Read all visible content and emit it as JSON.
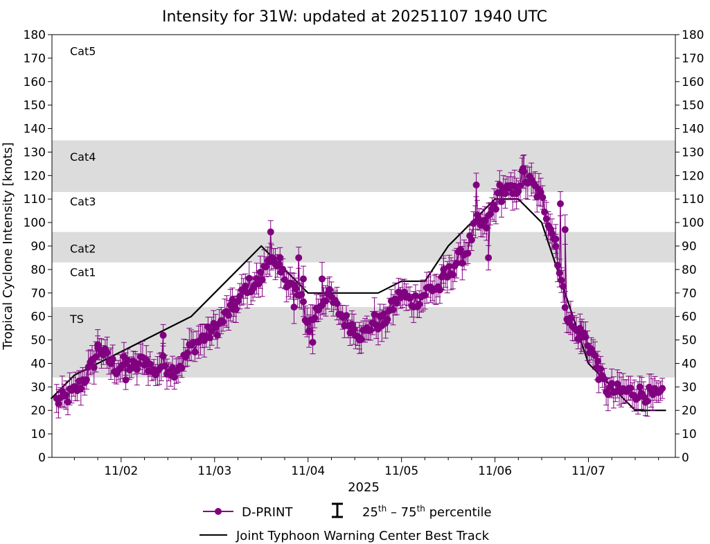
{
  "colors": {
    "dprint": "#800080",
    "best_track": "#000000",
    "band": "#dcdcdc"
  },
  "chart_data": {
    "type": "line",
    "title": "Intensity for 31W: updated at 20251107 1940 UTC",
    "ylabel": "Tropical Cyclone Intensity [knots]",
    "xlabel": "2025",
    "ylim": [
      0,
      180
    ],
    "xlim": [
      1.26,
      7.93
    ],
    "yticks": [
      0,
      10,
      20,
      30,
      40,
      50,
      60,
      70,
      80,
      90,
      100,
      110,
      120,
      130,
      140,
      150,
      160,
      170,
      180
    ],
    "xticks": [
      {
        "value": 2,
        "label": "11/02"
      },
      {
        "value": 3,
        "label": "11/03"
      },
      {
        "value": 4,
        "label": "11/04"
      },
      {
        "value": 5,
        "label": "11/05"
      },
      {
        "value": 6,
        "label": "11/06"
      },
      {
        "value": 7,
        "label": "11/07"
      }
    ],
    "category_bands": [
      {
        "label": "TS",
        "from": 34,
        "to": 64,
        "shaded": true,
        "label_y": 59
      },
      {
        "label": "Cat1",
        "from": 64,
        "to": 83,
        "shaded": false,
        "label_y": 79
      },
      {
        "label": "Cat2",
        "from": 83,
        "to": 96,
        "shaded": true,
        "label_y": 89
      },
      {
        "label": "Cat3",
        "from": 96,
        "to": 113,
        "shaded": false,
        "label_y": 109
      },
      {
        "label": "Cat4",
        "from": 113,
        "to": 135,
        "shaded": true,
        "label_y": 128
      },
      {
        "label": "Cat5",
        "from": 135,
        "to": 180,
        "shaded": false,
        "label_y": 173
      }
    ],
    "series": [
      {
        "name": "Joint Typhoon Warning Center Best Track",
        "type": "line",
        "points": [
          [
            1.25,
            25
          ],
          [
            1.5,
            35
          ],
          [
            2.0,
            45
          ],
          [
            2.75,
            60
          ],
          [
            3.5,
            90
          ],
          [
            4.0,
            70
          ],
          [
            4.75,
            70
          ],
          [
            5.0,
            75
          ],
          [
            5.25,
            75
          ],
          [
            5.5,
            90
          ],
          [
            6.0,
            110
          ],
          [
            6.25,
            110
          ],
          [
            6.5,
            100
          ],
          [
            6.75,
            70
          ],
          [
            7.0,
            40
          ],
          [
            7.25,
            30
          ],
          [
            7.5,
            20
          ],
          [
            7.83,
            20
          ]
        ]
      },
      {
        "name": "D-PRINT",
        "type": "errorbar",
        "anchors": [
          [
            1.31,
            24
          ],
          [
            1.4,
            25
          ],
          [
            1.5,
            28
          ],
          [
            1.6,
            33
          ],
          [
            1.7,
            40
          ],
          [
            1.77,
            47
          ],
          [
            1.85,
            42
          ],
          [
            1.95,
            38
          ],
          [
            2.05,
            40
          ],
          [
            2.15,
            38
          ],
          [
            2.25,
            42
          ],
          [
            2.35,
            36
          ],
          [
            2.45,
            40
          ],
          [
            2.55,
            37
          ],
          [
            2.65,
            40
          ],
          [
            2.75,
            47
          ],
          [
            2.85,
            50
          ],
          [
            2.95,
            53
          ],
          [
            3.05,
            56
          ],
          [
            3.15,
            62
          ],
          [
            3.25,
            66
          ],
          [
            3.35,
            73
          ],
          [
            3.45,
            74
          ],
          [
            3.52,
            78
          ],
          [
            3.6,
            88
          ],
          [
            3.65,
            80
          ],
          [
            3.75,
            77
          ],
          [
            3.85,
            72
          ],
          [
            3.95,
            65
          ],
          [
            4.0,
            55
          ],
          [
            4.1,
            63
          ],
          [
            4.2,
            70
          ],
          [
            4.3,
            64
          ],
          [
            4.4,
            58
          ],
          [
            4.5,
            55
          ],
          [
            4.6,
            52
          ],
          [
            4.7,
            58
          ],
          [
            4.8,
            57
          ],
          [
            4.9,
            64
          ],
          [
            5.0,
            70
          ],
          [
            5.1,
            66
          ],
          [
            5.2,
            68
          ],
          [
            5.3,
            72
          ],
          [
            5.4,
            72
          ],
          [
            5.5,
            78
          ],
          [
            5.6,
            84
          ],
          [
            5.7,
            88
          ],
          [
            5.8,
            100
          ],
          [
            5.9,
            98
          ],
          [
            6.0,
            108
          ],
          [
            6.1,
            114
          ],
          [
            6.2,
            112
          ],
          [
            6.3,
            120
          ],
          [
            6.4,
            116
          ],
          [
            6.5,
            110
          ],
          [
            6.6,
            98
          ],
          [
            6.65,
            90
          ],
          [
            6.72,
            72
          ],
          [
            6.78,
            60
          ],
          [
            6.85,
            54
          ],
          [
            6.95,
            52
          ],
          [
            7.05,
            44
          ],
          [
            7.12,
            35
          ],
          [
            7.2,
            29
          ],
          [
            7.3,
            28
          ],
          [
            7.4,
            28
          ],
          [
            7.5,
            28
          ],
          [
            7.6,
            27
          ],
          [
            7.7,
            26
          ],
          [
            7.8,
            26
          ]
        ],
        "pinned_points": [
          [
            1.75,
            48
          ],
          [
            2.05,
            33
          ],
          [
            2.45,
            52
          ],
          [
            3.2,
            63
          ],
          [
            3.6,
            96
          ],
          [
            3.7,
            85
          ],
          [
            3.85,
            64
          ],
          [
            3.9,
            85
          ],
          [
            3.95,
            76
          ],
          [
            4.05,
            49
          ],
          [
            4.15,
            76
          ],
          [
            4.55,
            50
          ],
          [
            5.45,
            80
          ],
          [
            5.8,
            116
          ],
          [
            5.93,
            85
          ],
          [
            6.05,
            116
          ],
          [
            6.3,
            123
          ],
          [
            6.65,
            93
          ],
          [
            6.7,
            108
          ],
          [
            6.75,
            97
          ],
          [
            6.92,
            51
          ],
          [
            7.1,
            41
          ]
        ],
        "jitter": 3.5,
        "step": 0.02,
        "error_half_width": 5.5
      }
    ]
  },
  "legend": {
    "dprint_label": "D-PRINT",
    "percentile_label": "25th – 75th percentile",
    "best_track_label": "Joint Typhoon Warning Center Best Track"
  }
}
